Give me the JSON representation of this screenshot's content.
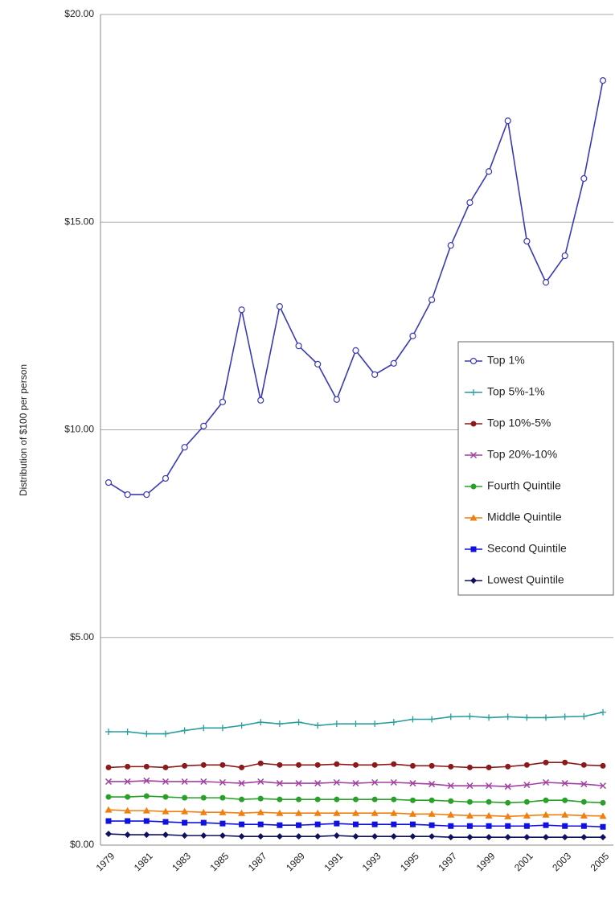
{
  "chart_data": {
    "type": "line",
    "y_label": "Distribution of $100 per person",
    "categories": [
      "1979",
      null,
      "1981",
      null,
      "1983",
      null,
      "1985",
      null,
      "1987",
      null,
      "1989",
      null,
      "1991",
      null,
      "1993",
      null,
      "1995",
      null,
      "1997",
      null,
      "1999",
      null,
      "2001",
      null,
      "2003",
      null,
      "2005"
    ],
    "ylim": [
      0,
      20
    ],
    "yticks": [
      {
        "value": 0,
        "label": "$0.00"
      },
      {
        "value": 5,
        "label": "$5.00"
      },
      {
        "value": 10,
        "label": "$10.00"
      },
      {
        "value": 15,
        "label": "$15.00"
      },
      {
        "value": 20,
        "label": "$20.00"
      }
    ],
    "grid": true,
    "legend": "right",
    "series": [
      {
        "name": "Top 1%",
        "color": "#3a3ab4",
        "marker": "circle-open",
        "values": [
          8.73,
          8.44,
          8.44,
          8.83,
          9.58,
          10.09,
          10.67,
          12.89,
          10.71,
          12.97,
          12.02,
          11.58,
          10.73,
          11.91,
          11.33,
          11.6,
          12.26,
          13.13,
          14.44,
          15.47,
          16.22,
          17.44,
          14.54,
          13.55,
          14.19,
          16.05,
          18.41
        ]
      },
      {
        "name": "Top 5%-1%",
        "color": "#2a9d9d",
        "marker": "plus",
        "values": [
          2.73,
          2.73,
          2.68,
          2.68,
          2.76,
          2.82,
          2.82,
          2.88,
          2.96,
          2.92,
          2.96,
          2.88,
          2.92,
          2.92,
          2.92,
          2.96,
          3.03,
          3.03,
          3.09,
          3.1,
          3.07,
          3.09,
          3.07,
          3.07,
          3.09,
          3.1,
          3.2
        ]
      },
      {
        "name": "Top 10%-5%",
        "color": "#8b1a1a",
        "marker": "circle",
        "values": [
          1.87,
          1.89,
          1.89,
          1.87,
          1.91,
          1.93,
          1.93,
          1.87,
          1.97,
          1.93,
          1.93,
          1.93,
          1.95,
          1.93,
          1.93,
          1.95,
          1.91,
          1.91,
          1.89,
          1.87,
          1.87,
          1.89,
          1.93,
          1.99,
          1.99,
          1.93,
          1.91
        ]
      },
      {
        "name": "Top 20%-10%",
        "color": "#a040a0",
        "marker": "x",
        "values": [
          1.53,
          1.53,
          1.55,
          1.53,
          1.53,
          1.53,
          1.51,
          1.49,
          1.53,
          1.49,
          1.49,
          1.49,
          1.51,
          1.49,
          1.51,
          1.51,
          1.49,
          1.47,
          1.43,
          1.43,
          1.43,
          1.41,
          1.45,
          1.51,
          1.49,
          1.47,
          1.43
        ]
      },
      {
        "name": "Fourth Quintile",
        "color": "#2aa02a",
        "marker": "circle",
        "values": [
          1.16,
          1.16,
          1.18,
          1.16,
          1.14,
          1.14,
          1.14,
          1.1,
          1.12,
          1.1,
          1.1,
          1.1,
          1.1,
          1.1,
          1.1,
          1.1,
          1.08,
          1.08,
          1.06,
          1.04,
          1.04,
          1.02,
          1.04,
          1.08,
          1.08,
          1.04,
          1.02
        ]
      },
      {
        "name": "Middle Quintile",
        "color": "#f07f10",
        "marker": "triangle",
        "values": [
          0.85,
          0.83,
          0.83,
          0.81,
          0.81,
          0.79,
          0.79,
          0.77,
          0.79,
          0.77,
          0.77,
          0.77,
          0.77,
          0.77,
          0.77,
          0.77,
          0.75,
          0.75,
          0.73,
          0.71,
          0.71,
          0.69,
          0.71,
          0.73,
          0.73,
          0.71,
          0.7
        ]
      },
      {
        "name": "Second Quintile",
        "color": "#1010e0",
        "marker": "square",
        "values": [
          0.58,
          0.58,
          0.58,
          0.56,
          0.54,
          0.54,
          0.52,
          0.5,
          0.5,
          0.48,
          0.48,
          0.5,
          0.52,
          0.5,
          0.5,
          0.5,
          0.5,
          0.48,
          0.46,
          0.46,
          0.46,
          0.46,
          0.46,
          0.48,
          0.46,
          0.46,
          0.44
        ]
      },
      {
        "name": "Lowest Quintile",
        "color": "#101060",
        "marker": "diamond",
        "values": [
          0.27,
          0.25,
          0.25,
          0.25,
          0.23,
          0.23,
          0.23,
          0.21,
          0.21,
          0.21,
          0.21,
          0.21,
          0.23,
          0.21,
          0.21,
          0.21,
          0.21,
          0.21,
          0.19,
          0.19,
          0.19,
          0.19,
          0.19,
          0.19,
          0.19,
          0.19,
          0.19
        ]
      }
    ]
  }
}
